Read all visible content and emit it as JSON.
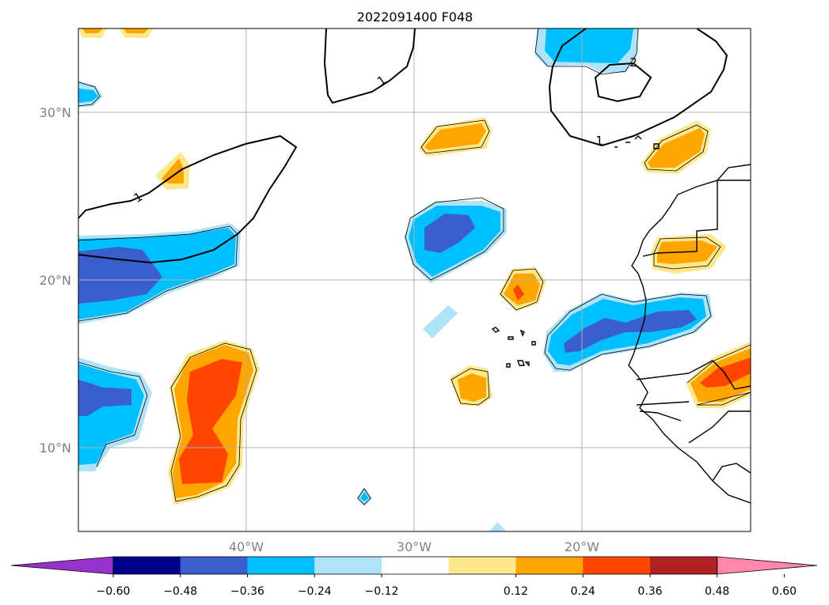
{
  "title": "2022091400 F048",
  "map": {
    "lon_range": [
      -50,
      -10
    ],
    "lat_range": [
      5,
      35
    ],
    "lat_ticks": [
      {
        "value": 30,
        "label": "30°N"
      },
      {
        "value": 20,
        "label": "20°N"
      },
      {
        "value": 10,
        "label": "10°N"
      }
    ],
    "lon_ticks": [
      {
        "value": -40,
        "label": "40°W"
      },
      {
        "value": -30,
        "label": "30°W"
      },
      {
        "value": -20,
        "label": "20°W"
      }
    ],
    "gridlines": true
  },
  "contour_labels": [
    {
      "text": "1",
      "lon": -43.5,
      "lat": 25.2
    },
    {
      "text": "1",
      "lon": -31.8,
      "lat": 32.9
    },
    {
      "text": "1",
      "lon": -18.9,
      "lat": 28.3
    },
    {
      "text": "2",
      "lon": -16.9,
      "lat": 33.0
    }
  ],
  "colorbar": {
    "colors": [
      "#9932cc",
      "#00008b",
      "#3a5fcd",
      "#00bfff",
      "#afe3fa",
      "#ffffff",
      "#ffe88c",
      "#ffa500",
      "#ff4500",
      "#b22222",
      "#ff88aa"
    ],
    "ticks": [
      "−0.60",
      "−0.48",
      "−0.36",
      "−0.24",
      "−0.12",
      "0.12",
      "0.24",
      "0.36",
      "0.48",
      "0.60"
    ],
    "extend": "both"
  }
}
